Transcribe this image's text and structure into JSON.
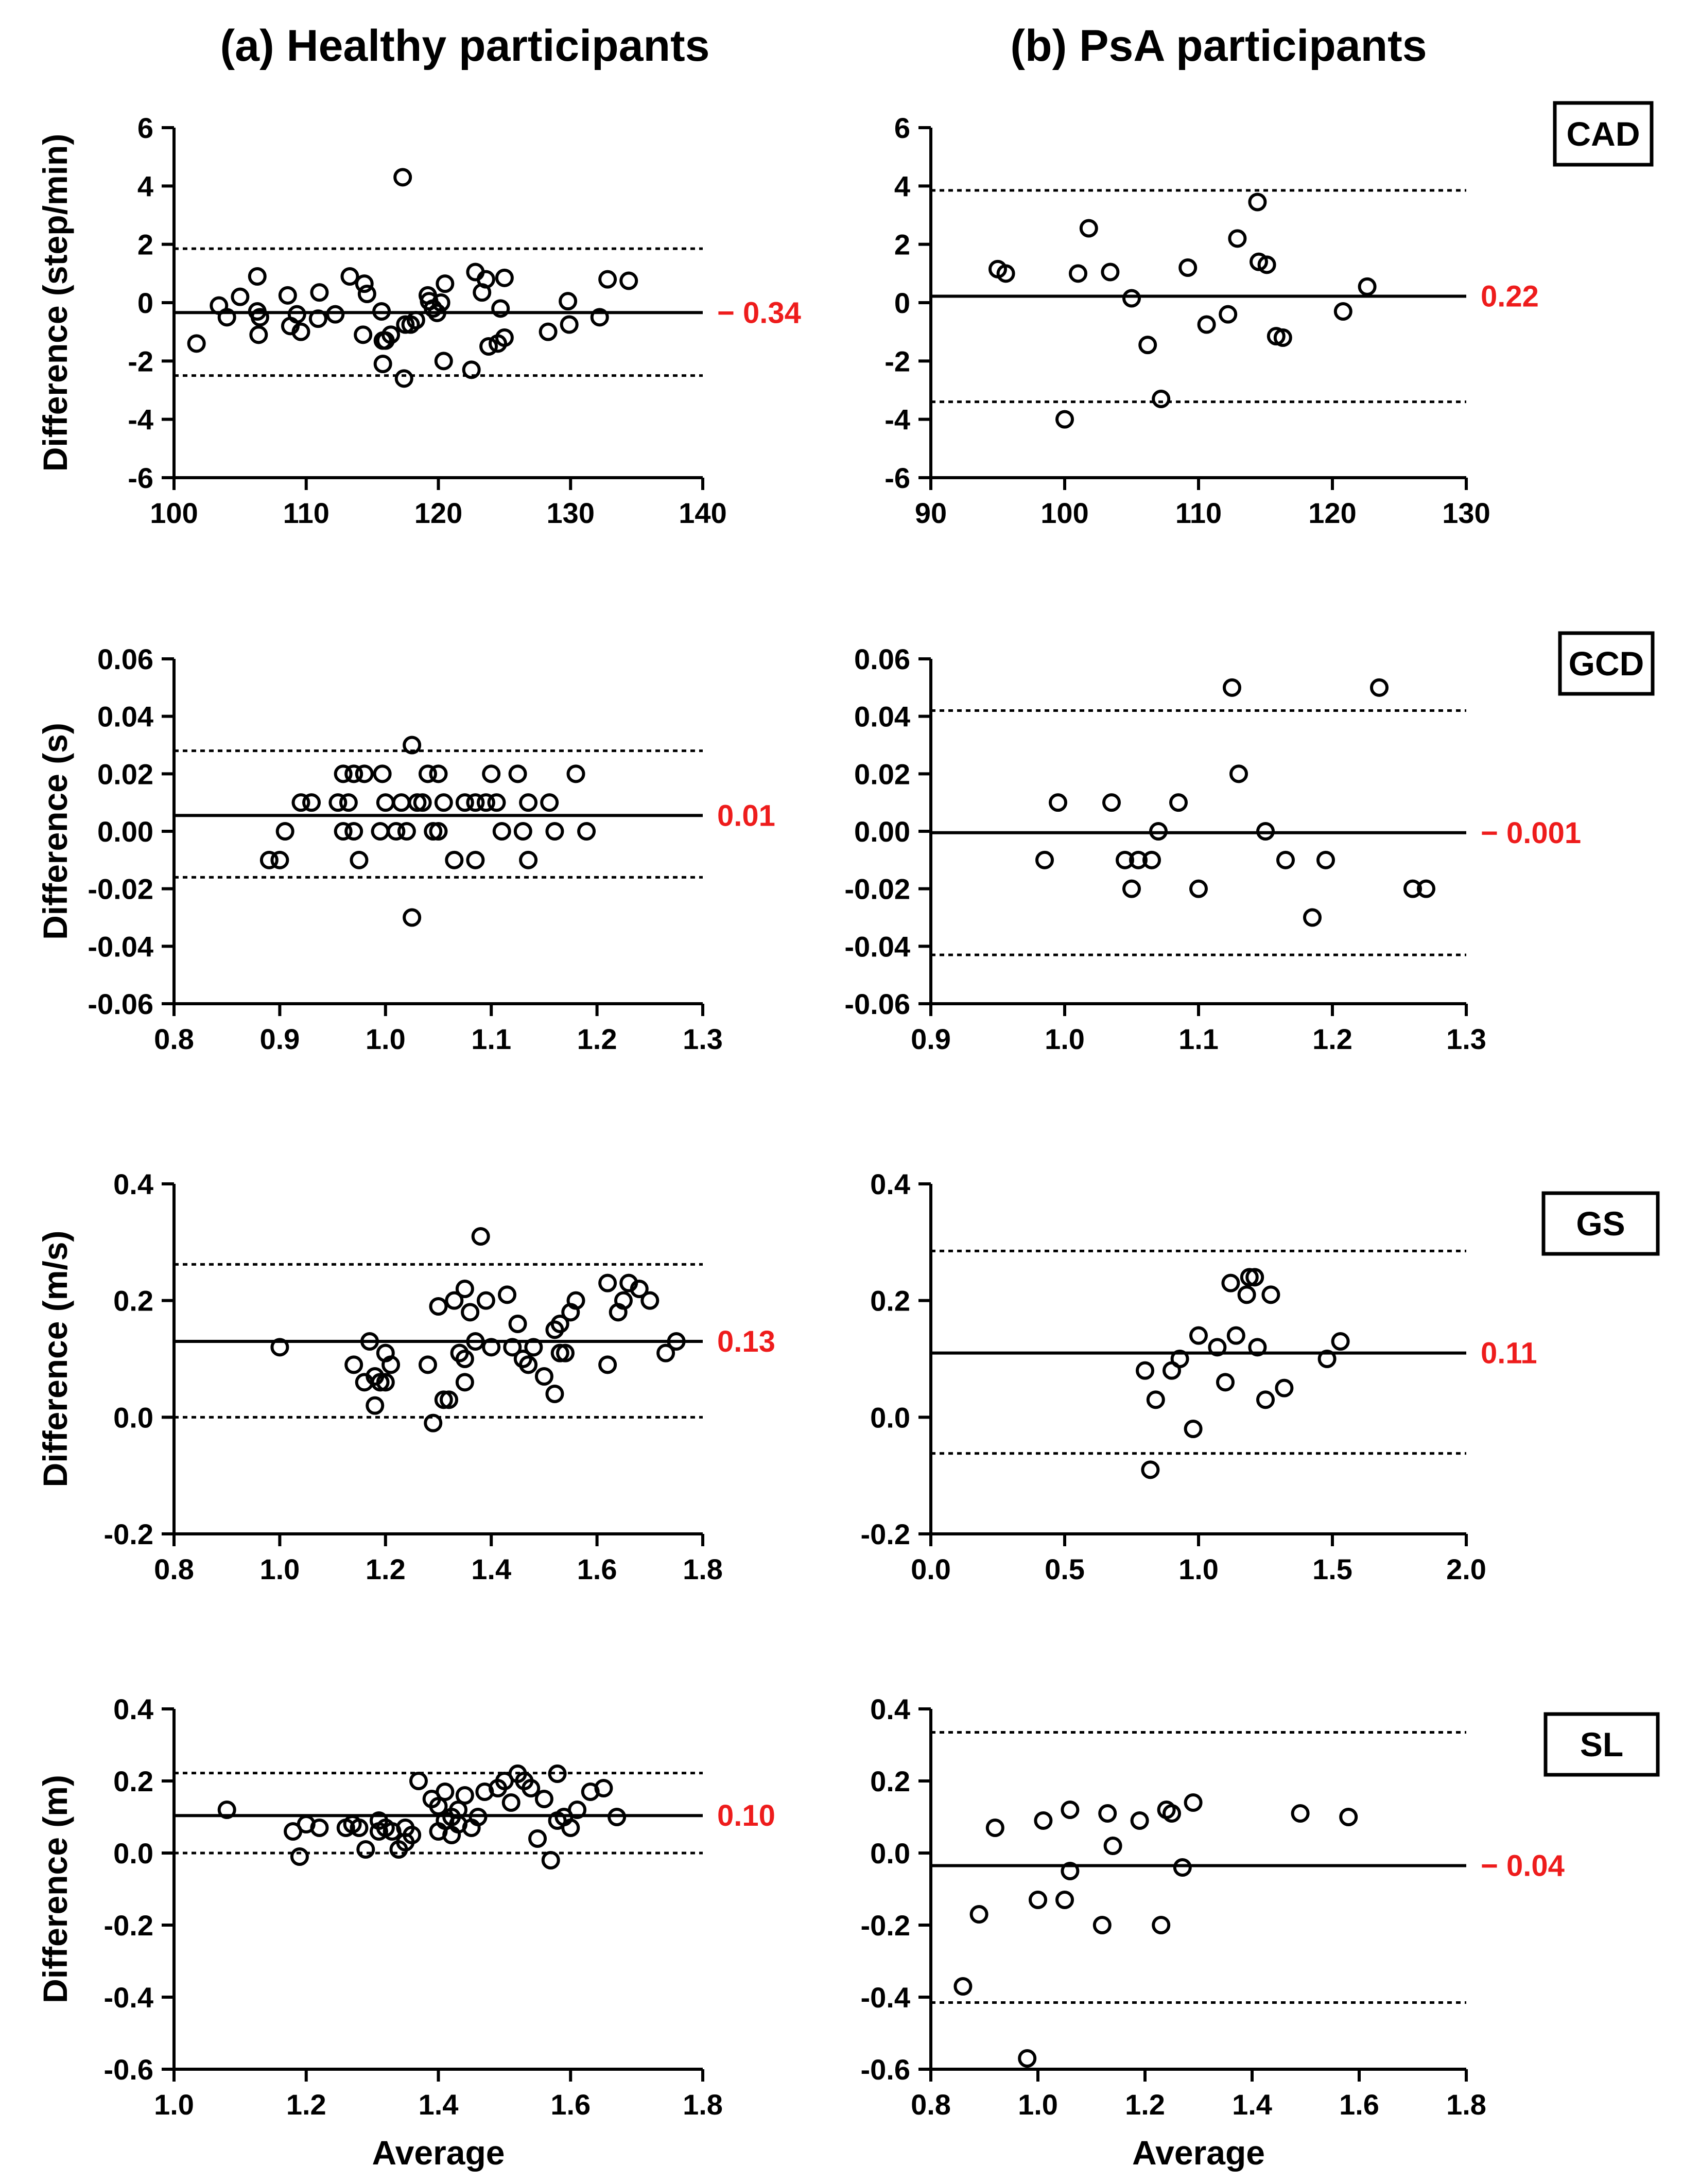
{
  "titles": {
    "left": "(a) Healthy participants",
    "right": "(b) PsA participants"
  },
  "colors": {
    "ink": "#000000",
    "label": "#ee1c1c"
  },
  "chart_data": [
    {
      "type": "scatter",
      "id": "cad-healthy",
      "column": "left",
      "row": 0,
      "ylabel": "Difference (step/min)",
      "xlabel": "",
      "xlim": [
        100,
        140
      ],
      "ylim": [
        -6,
        6
      ],
      "xticks": [
        "100",
        "110",
        "120",
        "130",
        "140"
      ],
      "yticks": [
        "-6",
        "-4",
        "-2",
        "0",
        "2",
        "4",
        "6"
      ],
      "mean": -0.34,
      "loa": [
        1.85,
        -2.5
      ],
      "mean_label": "− 0.34",
      "points": [
        [
          101.7,
          -1.4
        ],
        [
          103.4,
          -0.1
        ],
        [
          104,
          -0.5
        ],
        [
          105,
          0.2
        ],
        [
          106.3,
          0.9
        ],
        [
          106.3,
          -0.3
        ],
        [
          106.5,
          -0.5
        ],
        [
          106.4,
          -1.1
        ],
        [
          108.6,
          0.25
        ],
        [
          108.8,
          -0.8
        ],
        [
          109.3,
          -0.4
        ],
        [
          109.6,
          -1.0
        ],
        [
          110.9,
          -0.55
        ],
        [
          111,
          0.35
        ],
        [
          112.2,
          -0.4
        ],
        [
          113.3,
          0.9
        ],
        [
          114.3,
          -1.1
        ],
        [
          114.4,
          0.65
        ],
        [
          114.6,
          0.3
        ],
        [
          115.7,
          -0.3
        ],
        [
          115.8,
          -2.1
        ],
        [
          115.8,
          -1.3
        ],
        [
          116,
          -1.3
        ],
        [
          116.4,
          -1.1
        ],
        [
          117.3,
          4.3
        ],
        [
          117.4,
          -2.6
        ],
        [
          117.5,
          -0.75
        ],
        [
          117.9,
          -0.75
        ],
        [
          118.3,
          -0.6
        ],
        [
          119.2,
          0.25
        ],
        [
          119.3,
          0.05
        ],
        [
          119.6,
          -0.2
        ],
        [
          119.9,
          -0.35
        ],
        [
          120.2,
          0.0
        ],
        [
          120.4,
          -2.0
        ],
        [
          120.5,
          0.65
        ],
        [
          122.5,
          -2.3
        ],
        [
          122.8,
          1.05
        ],
        [
          123.3,
          0.35
        ],
        [
          123.6,
          0.8
        ],
        [
          123.8,
          -1.5
        ],
        [
          124.5,
          -1.4
        ],
        [
          124.7,
          -0.2
        ],
        [
          125,
          0.85
        ],
        [
          125,
          -1.2
        ],
        [
          128.3,
          -1.0
        ],
        [
          129.8,
          0.05
        ],
        [
          129.9,
          -0.75
        ],
        [
          132.2,
          -0.5
        ],
        [
          132.8,
          0.8
        ],
        [
          134.4,
          0.75
        ]
      ]
    },
    {
      "type": "scatter",
      "id": "cad-psa",
      "column": "right",
      "row": 0,
      "tag": "CAD",
      "ylabel": "",
      "xlabel": "",
      "xlim": [
        90,
        130
      ],
      "ylim": [
        -6,
        6
      ],
      "xticks": [
        "90",
        "100",
        "110",
        "120",
        "130"
      ],
      "yticks": [
        "-6",
        "-4",
        "-2",
        "0",
        "2",
        "4",
        "6"
      ],
      "mean": 0.22,
      "loa": [
        3.85,
        -3.4
      ],
      "mean_label": "0.22",
      "points": [
        [
          95,
          1.15
        ],
        [
          95.6,
          1.0
        ],
        [
          100,
          -4.0
        ],
        [
          101,
          1.0
        ],
        [
          101.8,
          2.55
        ],
        [
          103.4,
          1.05
        ],
        [
          105,
          0.15
        ],
        [
          106.2,
          -1.45
        ],
        [
          107.2,
          -3.3
        ],
        [
          109.2,
          1.2
        ],
        [
          110.6,
          -0.75
        ],
        [
          112.2,
          -0.4
        ],
        [
          112.9,
          2.2
        ],
        [
          114.4,
          3.45
        ],
        [
          114.5,
          1.4
        ],
        [
          115.1,
          1.3
        ],
        [
          115.8,
          -1.15
        ],
        [
          116.3,
          -1.2
        ],
        [
          120.8,
          -0.3
        ],
        [
          122.6,
          0.55
        ]
      ]
    },
    {
      "type": "scatter",
      "id": "gcd-healthy",
      "column": "left",
      "row": 1,
      "ylabel": "Difference (s)",
      "xlabel": "",
      "xlim": [
        0.8,
        1.3
      ],
      "ylim": [
        -0.06,
        0.06
      ],
      "xticks": [
        "0.8",
        "0.9",
        "1.0",
        "1.1",
        "1.2",
        "1.3"
      ],
      "yticks": [
        "-0.06",
        "-0.04",
        "-0.02",
        "0.00",
        "0.02",
        "0.04",
        "0.06"
      ],
      "mean": 0.0055,
      "loa": [
        0.028,
        -0.016
      ],
      "mean_label": "0.01",
      "points": [
        [
          0.89,
          -0.01
        ],
        [
          0.9,
          -0.01
        ],
        [
          0.905,
          0.0
        ],
        [
          0.92,
          0.01
        ],
        [
          0.93,
          0.01
        ],
        [
          0.955,
          0.01
        ],
        [
          0.96,
          0.02
        ],
        [
          0.96,
          0.0
        ],
        [
          0.965,
          0.01
        ],
        [
          0.97,
          0.02
        ],
        [
          0.97,
          0.0
        ],
        [
          0.975,
          -0.01
        ],
        [
          0.98,
          0.02
        ],
        [
          0.995,
          0.0
        ],
        [
          0.997,
          0.02
        ],
        [
          1.0,
          0.01
        ],
        [
          1.01,
          0.0
        ],
        [
          1.015,
          0.01
        ],
        [
          1.02,
          0.0
        ],
        [
          1.025,
          0.03
        ],
        [
          1.025,
          -0.03
        ],
        [
          1.03,
          0.01
        ],
        [
          1.035,
          0.01
        ],
        [
          1.04,
          0.02
        ],
        [
          1.045,
          0.0
        ],
        [
          1.05,
          0.02
        ],
        [
          1.05,
          0.0
        ],
        [
          1.055,
          0.01
        ],
        [
          1.065,
          -0.01
        ],
        [
          1.075,
          0.01
        ],
        [
          1.085,
          0.01
        ],
        [
          1.085,
          -0.01
        ],
        [
          1.095,
          0.01
        ],
        [
          1.1,
          0.02
        ],
        [
          1.105,
          0.01
        ],
        [
          1.11,
          0.0
        ],
        [
          1.125,
          0.02
        ],
        [
          1.13,
          0.0
        ],
        [
          1.135,
          0.01
        ],
        [
          1.135,
          -0.01
        ],
        [
          1.155,
          0.01
        ],
        [
          1.16,
          0.0
        ],
        [
          1.18,
          0.02
        ],
        [
          1.19,
          0.0
        ]
      ]
    },
    {
      "type": "scatter",
      "id": "gcd-psa",
      "column": "right",
      "row": 1,
      "tag": "GCD",
      "ylabel": "",
      "xlabel": "",
      "xlim": [
        0.9,
        1.3
      ],
      "ylim": [
        -0.06,
        0.06
      ],
      "xticks": [
        "0.9",
        "1.0",
        "1.1",
        "1.2",
        "1.3"
      ],
      "yticks": [
        "-0.06",
        "-0.04",
        "-0.02",
        "0.00",
        "0.02",
        "0.04",
        "0.06"
      ],
      "mean": -0.0005,
      "loa": [
        0.042,
        -0.043
      ],
      "mean_label": "− 0.001",
      "points": [
        [
          0.985,
          -0.01
        ],
        [
          0.995,
          0.01
        ],
        [
          1.035,
          0.01
        ],
        [
          1.045,
          -0.01
        ],
        [
          1.05,
          -0.02
        ],
        [
          1.055,
          -0.01
        ],
        [
          1.065,
          -0.01
        ],
        [
          1.07,
          0.0
        ],
        [
          1.085,
          0.01
        ],
        [
          1.1,
          -0.02
        ],
        [
          1.125,
          0.05
        ],
        [
          1.13,
          0.02
        ],
        [
          1.15,
          0.0
        ],
        [
          1.165,
          -0.01
        ],
        [
          1.185,
          -0.03
        ],
        [
          1.195,
          -0.01
        ],
        [
          1.235,
          0.05
        ],
        [
          1.26,
          -0.02
        ],
        [
          1.27,
          -0.02
        ]
      ]
    },
    {
      "type": "scatter",
      "id": "gs-healthy",
      "column": "left",
      "row": 2,
      "ylabel": "Difference (m/s)",
      "xlabel": "",
      "xlim": [
        0.8,
        1.8
      ],
      "ylim": [
        -0.2,
        0.4
      ],
      "xticks": [
        "0.8",
        "1.0",
        "1.2",
        "1.4",
        "1.6",
        "1.8"
      ],
      "yticks": [
        "-0.2",
        "0.0",
        "0.2",
        "0.4"
      ],
      "mean": 0.13,
      "loa": [
        0.262,
        0.0
      ],
      "mean_label": "0.13",
      "points": [
        [
          1.0,
          0.12
        ],
        [
          1.14,
          0.09
        ],
        [
          1.16,
          0.06
        ],
        [
          1.17,
          0.13
        ],
        [
          1.18,
          0.07
        ],
        [
          1.18,
          0.02
        ],
        [
          1.19,
          0.06
        ],
        [
          1.2,
          0.11
        ],
        [
          1.2,
          0.06
        ],
        [
          1.21,
          0.09
        ],
        [
          1.28,
          0.09
        ],
        [
          1.29,
          -0.01
        ],
        [
          1.3,
          0.19
        ],
        [
          1.31,
          0.03
        ],
        [
          1.32,
          0.03
        ],
        [
          1.33,
          0.2
        ],
        [
          1.34,
          0.11
        ],
        [
          1.35,
          0.22
        ],
        [
          1.35,
          0.1
        ],
        [
          1.35,
          0.06
        ],
        [
          1.36,
          0.18
        ],
        [
          1.37,
          0.13
        ],
        [
          1.38,
          0.31
        ],
        [
          1.39,
          0.2
        ],
        [
          1.4,
          0.12
        ],
        [
          1.43,
          0.21
        ],
        [
          1.44,
          0.12
        ],
        [
          1.45,
          0.16
        ],
        [
          1.46,
          0.1
        ],
        [
          1.47,
          0.09
        ],
        [
          1.48,
          0.12
        ],
        [
          1.5,
          0.07
        ],
        [
          1.52,
          0.15
        ],
        [
          1.52,
          0.04
        ],
        [
          1.53,
          0.11
        ],
        [
          1.53,
          0.16
        ],
        [
          1.54,
          0.11
        ],
        [
          1.55,
          0.18
        ],
        [
          1.56,
          0.2
        ],
        [
          1.62,
          0.09
        ],
        [
          1.62,
          0.23
        ],
        [
          1.64,
          0.18
        ],
        [
          1.65,
          0.2
        ],
        [
          1.66,
          0.23
        ],
        [
          1.68,
          0.22
        ],
        [
          1.7,
          0.2
        ],
        [
          1.73,
          0.11
        ],
        [
          1.75,
          0.13
        ]
      ]
    },
    {
      "type": "scatter",
      "id": "gs-psa",
      "column": "right",
      "row": 2,
      "tag": "GS",
      "ylabel": "",
      "xlabel": "",
      "xlim": [
        0.0,
        2.0
      ],
      "ylim": [
        -0.2,
        0.4
      ],
      "xticks": [
        "0.0",
        "0.5",
        "1.0",
        "1.5",
        "2.0"
      ],
      "yticks": [
        "-0.2",
        "0.0",
        "0.2",
        "0.4"
      ],
      "mean": 0.11,
      "loa": [
        0.285,
        -0.062
      ],
      "mean_label": "0.11",
      "points": [
        [
          0.8,
          0.08
        ],
        [
          0.82,
          -0.09
        ],
        [
          0.84,
          0.03
        ],
        [
          0.9,
          0.08
        ],
        [
          0.93,
          0.1
        ],
        [
          0.98,
          -0.02
        ],
        [
          1.0,
          0.14
        ],
        [
          1.07,
          0.12
        ],
        [
          1.1,
          0.06
        ],
        [
          1.12,
          0.23
        ],
        [
          1.14,
          0.14
        ],
        [
          1.18,
          0.21
        ],
        [
          1.19,
          0.24
        ],
        [
          1.21,
          0.24
        ],
        [
          1.22,
          0.12
        ],
        [
          1.25,
          0.03
        ],
        [
          1.27,
          0.21
        ],
        [
          1.32,
          0.05
        ],
        [
          1.48,
          0.1
        ],
        [
          1.53,
          0.13
        ]
      ]
    },
    {
      "type": "scatter",
      "id": "sl-healthy",
      "column": "left",
      "row": 3,
      "ylabel": "Difference (m)",
      "xlabel": "Average",
      "xlim": [
        1.0,
        1.8
      ],
      "ylim": [
        -0.6,
        0.4
      ],
      "xticks": [
        "1.0",
        "1.2",
        "1.4",
        "1.6",
        "1.8"
      ],
      "yticks": [
        "-0.6",
        "-0.4",
        "-0.2",
        "0.0",
        "0.2",
        "0.4"
      ],
      "mean": 0.104,
      "loa": [
        0.222,
        0.0
      ],
      "mean_label": "0.10",
      "points": [
        [
          1.08,
          0.12
        ],
        [
          1.18,
          0.06
        ],
        [
          1.19,
          -0.01
        ],
        [
          1.2,
          0.08
        ],
        [
          1.22,
          0.07
        ],
        [
          1.26,
          0.07
        ],
        [
          1.27,
          0.08
        ],
        [
          1.28,
          0.07
        ],
        [
          1.29,
          0.01
        ],
        [
          1.31,
          0.09
        ],
        [
          1.31,
          0.06
        ],
        [
          1.32,
          0.07
        ],
        [
          1.33,
          0.06
        ],
        [
          1.34,
          0.01
        ],
        [
          1.35,
          0.07
        ],
        [
          1.35,
          0.03
        ],
        [
          1.36,
          0.05
        ],
        [
          1.37,
          0.2
        ],
        [
          1.39,
          0.15
        ],
        [
          1.4,
          0.13
        ],
        [
          1.4,
          0.06
        ],
        [
          1.41,
          0.17
        ],
        [
          1.41,
          0.09
        ],
        [
          1.42,
          0.05
        ],
        [
          1.42,
          0.1
        ],
        [
          1.43,
          0.08
        ],
        [
          1.43,
          0.12
        ],
        [
          1.44,
          0.16
        ],
        [
          1.45,
          0.07
        ],
        [
          1.46,
          0.1
        ],
        [
          1.47,
          0.17
        ],
        [
          1.49,
          0.18
        ],
        [
          1.5,
          0.2
        ],
        [
          1.51,
          0.14
        ],
        [
          1.52,
          0.22
        ],
        [
          1.53,
          0.2
        ],
        [
          1.54,
          0.18
        ],
        [
          1.55,
          0.04
        ],
        [
          1.56,
          0.15
        ],
        [
          1.57,
          -0.02
        ],
        [
          1.58,
          0.22
        ],
        [
          1.58,
          0.09
        ],
        [
          1.59,
          0.1
        ],
        [
          1.6,
          0.07
        ],
        [
          1.61,
          0.12
        ],
        [
          1.63,
          0.17
        ],
        [
          1.65,
          0.18
        ],
        [
          1.67,
          0.1
        ]
      ]
    },
    {
      "type": "scatter",
      "id": "sl-psa",
      "column": "right",
      "row": 3,
      "tag": "SL",
      "ylabel": "",
      "xlabel": "Average",
      "xlim": [
        0.8,
        1.8
      ],
      "ylim": [
        -0.6,
        0.4
      ],
      "xticks": [
        "0.8",
        "1.0",
        "1.2",
        "1.4",
        "1.6",
        "1.8"
      ],
      "yticks": [
        "-0.6",
        "-0.4",
        "-0.2",
        "0.0",
        "0.2",
        "0.4"
      ],
      "mean": -0.035,
      "loa": [
        0.335,
        -0.415
      ],
      "mean_label": "− 0.04",
      "points": [
        [
          0.86,
          -0.37
        ],
        [
          0.89,
          -0.17
        ],
        [
          0.92,
          0.07
        ],
        [
          0.98,
          -0.57
        ],
        [
          1.0,
          -0.13
        ],
        [
          1.01,
          0.09
        ],
        [
          1.05,
          -0.13
        ],
        [
          1.06,
          0.12
        ],
        [
          1.06,
          -0.05
        ],
        [
          1.12,
          -0.2
        ],
        [
          1.13,
          0.11
        ],
        [
          1.14,
          0.02
        ],
        [
          1.19,
          0.09
        ],
        [
          1.23,
          -0.2
        ],
        [
          1.24,
          0.12
        ],
        [
          1.25,
          0.11
        ],
        [
          1.27,
          -0.04
        ],
        [
          1.29,
          0.14
        ],
        [
          1.49,
          0.11
        ],
        [
          1.58,
          0.1
        ]
      ]
    }
  ]
}
